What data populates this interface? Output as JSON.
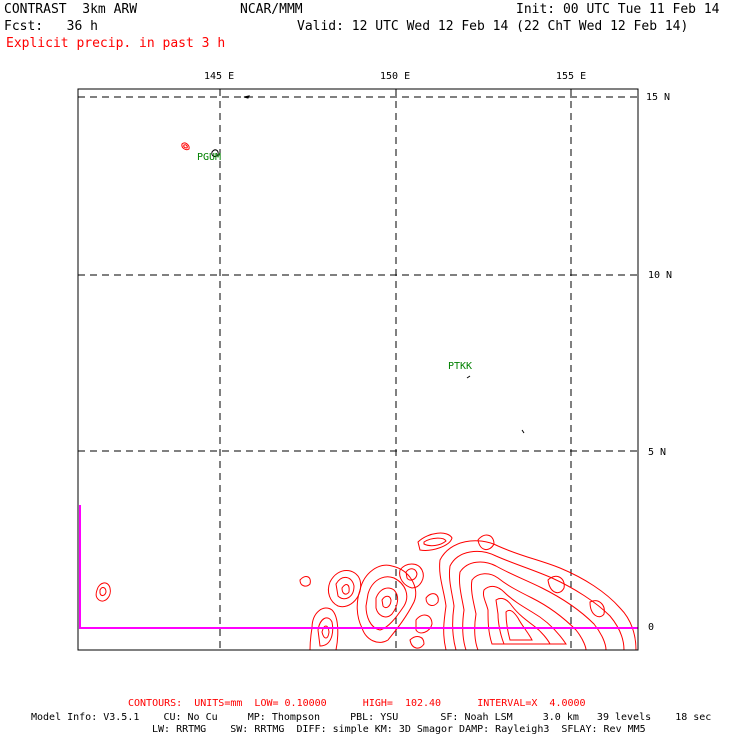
{
  "header": {
    "model": "CONTRAST  3km ARW",
    "org": "NCAR/MMM",
    "init": "Init: 00 UTC Tue 11 Feb 14",
    "fcst": "Fcst:   36 h",
    "valid": "Valid: 12 UTC Wed 12 Feb 14 (22 ChT Wed 12 Feb 14)",
    "field": "Explicit precip. in past 3 h"
  },
  "map": {
    "lon_labels": [
      "145 E",
      "150 E",
      "155 E"
    ],
    "lat_labels": [
      "15 N",
      "10 N",
      "5 N",
      "0"
    ],
    "stations": [
      {
        "id": "PGUM",
        "lon": 144.8,
        "lat": 13.5
      },
      {
        "id": "PTKK",
        "lon": 151.8,
        "lat": 7.4
      }
    ],
    "colors": {
      "contour": "#ff0000",
      "frame": "#000000",
      "boundary": "#ff00ff",
      "station": "#008000"
    }
  },
  "footer": {
    "contours": "CONTOURS:  UNITS=mm  LOW= 0.10000      HIGH=  102.40      INTERVAL=X  4.0000",
    "info1": "Model Info: V3.5.1    CU: No Cu     MP: Thompson     PBL: YSU       SF: Noah LSM     3.0 km   39 levels    18 sec",
    "info2": "LW: RRTMG    SW: RRTMG  DIFF: simple KM: 3D Smagor DAMP: Rayleigh3  SFLAY: Rev MM5"
  }
}
